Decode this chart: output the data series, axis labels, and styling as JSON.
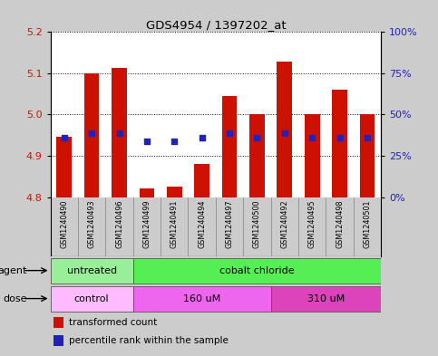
{
  "title": "GDS4954 / 1397202_at",
  "samples": [
    "GSM1240490",
    "GSM1240493",
    "GSM1240496",
    "GSM1240499",
    "GSM1240491",
    "GSM1240494",
    "GSM1240497",
    "GSM1240500",
    "GSM1240492",
    "GSM1240495",
    "GSM1240498",
    "GSM1240501"
  ],
  "bar_tops": [
    4.946,
    5.1,
    5.113,
    4.822,
    4.826,
    4.881,
    5.046,
    5.0,
    5.128,
    5.0,
    5.06,
    5.0
  ],
  "bar_bottom": 4.8,
  "dot_vals": [
    4.944,
    4.955,
    4.955,
    4.935,
    4.935,
    4.944,
    4.955,
    4.944,
    4.955,
    4.944,
    4.944,
    4.944
  ],
  "ylim_left": [
    4.8,
    5.2
  ],
  "ylim_right": [
    0,
    100
  ],
  "yticks_left": [
    4.8,
    4.9,
    5.0,
    5.1,
    5.2
  ],
  "yticks_right": [
    0,
    25,
    50,
    75,
    100
  ],
  "ytick_labels_right": [
    "0%",
    "25%",
    "50%",
    "75%",
    "100%"
  ],
  "bar_color": "#cc1100",
  "dot_color": "#2222bb",
  "agent_groups": [
    {
      "label": "untreated",
      "start": 0,
      "end": 2,
      "color": "#99ee99"
    },
    {
      "label": "cobalt chloride",
      "start": 3,
      "end": 11,
      "color": "#55ee55"
    }
  ],
  "dose_groups": [
    {
      "label": "control",
      "start": 0,
      "end": 2,
      "color": "#ffbbff"
    },
    {
      "label": "160 uM",
      "start": 3,
      "end": 7,
      "color": "#ee66ee"
    },
    {
      "label": "310 uM",
      "start": 8,
      "end": 11,
      "color": "#dd44bb"
    }
  ],
  "bg_color": "#cccccc",
  "plot_bg": "#ffffff",
  "xtick_bg": "#cccccc",
  "agent_label": "agent",
  "dose_label": "dose",
  "legend_items": [
    {
      "label": "transformed count",
      "color": "#cc1100"
    },
    {
      "label": "percentile rank within the sample",
      "color": "#2222bb"
    }
  ]
}
